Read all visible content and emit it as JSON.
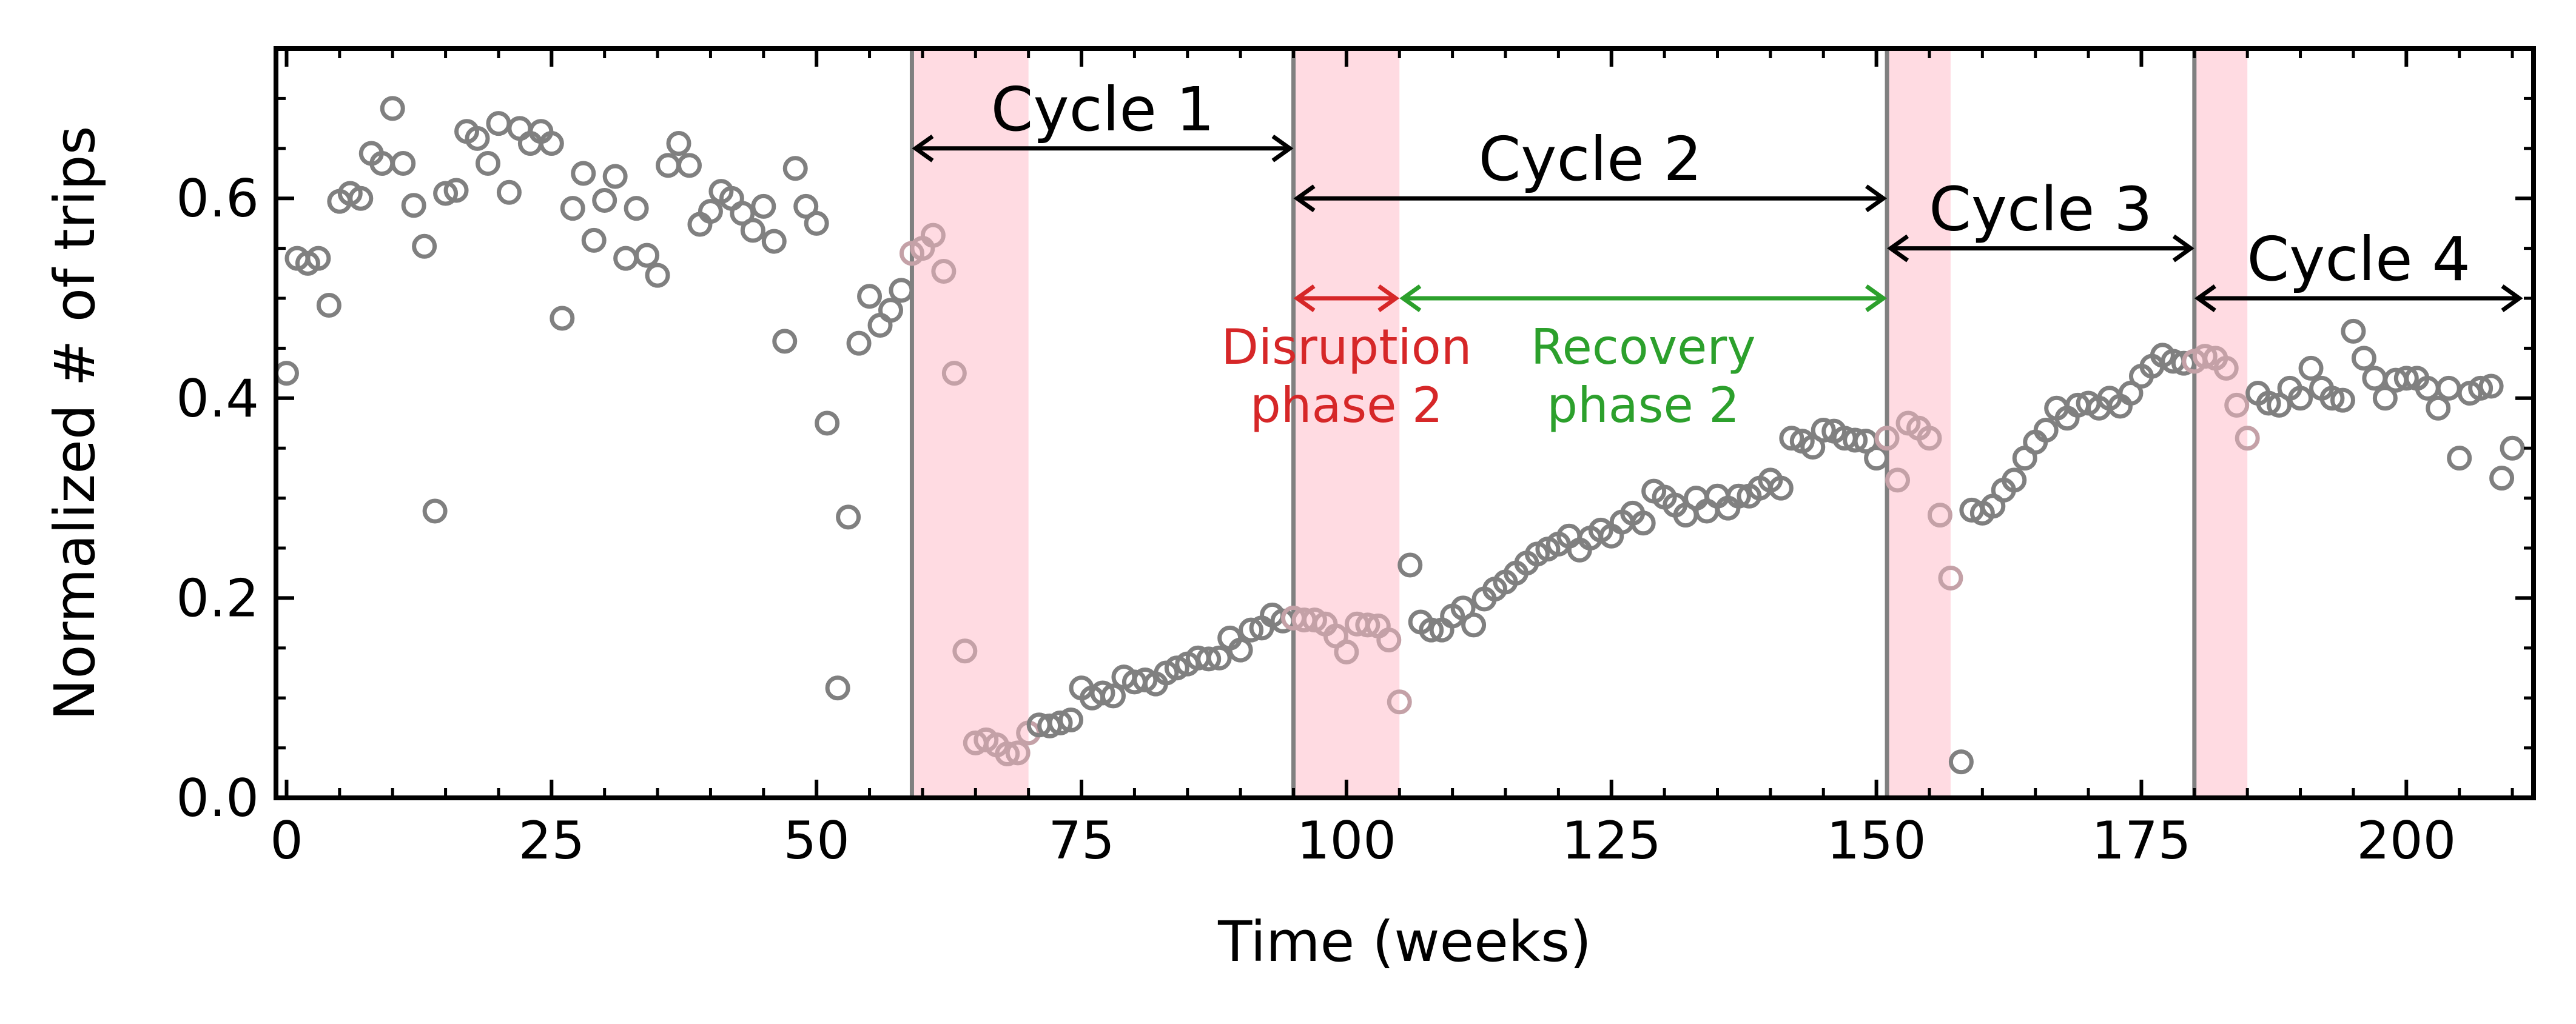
{
  "chart_data": {
    "type": "scatter",
    "xlabel": "Time (weeks)",
    "ylabel": "Normalized # of trips",
    "xlim": [
      -1,
      212
    ],
    "ylim": [
      0,
      0.75
    ],
    "x_ticks": [
      0,
      25,
      50,
      75,
      100,
      125,
      150,
      175,
      200
    ],
    "x_tick_labels": [
      "0",
      "25",
      "50",
      "75",
      "100",
      "125",
      "150",
      "175",
      "200"
    ],
    "y_ticks": [
      0.0,
      0.2,
      0.4,
      0.6
    ],
    "y_tick_labels": [
      "0.0",
      "0.2",
      "0.4",
      "0.6"
    ],
    "grid": false,
    "marker": "open-circle",
    "colors": {
      "point": "#808080",
      "point_in_disruption": "#c4a1a7",
      "disruption_shade": "#ffdbe2",
      "cycle_line": "#808080",
      "cycle_arrow": "#000000",
      "disruption_arrow": "#d62728",
      "recovery_arrow": "#2ca02c"
    },
    "cycle_boundaries": [
      59,
      95,
      151,
      180
    ],
    "disruption_periods": [
      [
        59,
        70
      ],
      [
        95,
        105
      ],
      [
        151,
        157
      ],
      [
        180,
        185
      ]
    ],
    "cycles": [
      {
        "label": "Cycle 1",
        "start": 59,
        "end": 95,
        "y": 0.65
      },
      {
        "label": "Cycle 2",
        "start": 95,
        "end": 151,
        "y": 0.6
      },
      {
        "label": "Cycle 3",
        "start": 151,
        "end": 180,
        "y": 0.55
      },
      {
        "label": "Cycle 4",
        "start": 180,
        "end": 211,
        "y": 0.5
      }
    ],
    "phases": [
      {
        "label_line1": "Disruption",
        "label_line2": "phase 2",
        "start": 95,
        "end": 105,
        "y": 0.5,
        "color": "#d62728"
      },
      {
        "label_line1": "Recovery",
        "label_line2": "phase 2",
        "start": 105,
        "end": 151,
        "y": 0.5,
        "color": "#2ca02c"
      }
    ],
    "points": [
      [
        0,
        0.425
      ],
      [
        1,
        0.54
      ],
      [
        2,
        0.535
      ],
      [
        3,
        0.54
      ],
      [
        4,
        0.493
      ],
      [
        5,
        0.597
      ],
      [
        6,
        0.605
      ],
      [
        7,
        0.6
      ],
      [
        8,
        0.645
      ],
      [
        9,
        0.635
      ],
      [
        10,
        0.69
      ],
      [
        11,
        0.635
      ],
      [
        12,
        0.593
      ],
      [
        13,
        0.552
      ],
      [
        14,
        0.287
      ],
      [
        15,
        0.605
      ],
      [
        16,
        0.608
      ],
      [
        17,
        0.667
      ],
      [
        18,
        0.66
      ],
      [
        19,
        0.635
      ],
      [
        20,
        0.675
      ],
      [
        21,
        0.606
      ],
      [
        22,
        0.67
      ],
      [
        23,
        0.655
      ],
      [
        24,
        0.667
      ],
      [
        25,
        0.655
      ],
      [
        26,
        0.48
      ],
      [
        27,
        0.59
      ],
      [
        28,
        0.625
      ],
      [
        29,
        0.558
      ],
      [
        30,
        0.598
      ],
      [
        31,
        0.622
      ],
      [
        32,
        0.54
      ],
      [
        33,
        0.59
      ],
      [
        34,
        0.543
      ],
      [
        35,
        0.523
      ],
      [
        36,
        0.633
      ],
      [
        37,
        0.655
      ],
      [
        38,
        0.633
      ],
      [
        39,
        0.574
      ],
      [
        40,
        0.587
      ],
      [
        41,
        0.607
      ],
      [
        42,
        0.6
      ],
      [
        43,
        0.585
      ],
      [
        44,
        0.568
      ],
      [
        45,
        0.592
      ],
      [
        46,
        0.557
      ],
      [
        47,
        0.457
      ],
      [
        48,
        0.63
      ],
      [
        49,
        0.592
      ],
      [
        50,
        0.575
      ],
      [
        51,
        0.375
      ],
      [
        52,
        0.11
      ],
      [
        53,
        0.281
      ],
      [
        54,
        0.455
      ],
      [
        55,
        0.502
      ],
      [
        56,
        0.473
      ],
      [
        57,
        0.488
      ],
      [
        58,
        0.508
      ],
      [
        59,
        0.545
      ],
      [
        60,
        0.55
      ],
      [
        61,
        0.563
      ],
      [
        62,
        0.527
      ],
      [
        63,
        0.425
      ],
      [
        64,
        0.147
      ],
      [
        65,
        0.055
      ],
      [
        66,
        0.058
      ],
      [
        67,
        0.053
      ],
      [
        68,
        0.044
      ],
      [
        69,
        0.045
      ],
      [
        70,
        0.065
      ],
      [
        71,
        0.073
      ],
      [
        72,
        0.072
      ],
      [
        73,
        0.075
      ],
      [
        74,
        0.078
      ],
      [
        75,
        0.11
      ],
      [
        76,
        0.1
      ],
      [
        77,
        0.105
      ],
      [
        78,
        0.102
      ],
      [
        79,
        0.121
      ],
      [
        80,
        0.116
      ],
      [
        81,
        0.118
      ],
      [
        82,
        0.114
      ],
      [
        83,
        0.125
      ],
      [
        84,
        0.13
      ],
      [
        85,
        0.134
      ],
      [
        86,
        0.14
      ],
      [
        87,
        0.139
      ],
      [
        88,
        0.14
      ],
      [
        89,
        0.16
      ],
      [
        90,
        0.148
      ],
      [
        91,
        0.168
      ],
      [
        92,
        0.17
      ],
      [
        93,
        0.183
      ],
      [
        94,
        0.177
      ],
      [
        95,
        0.18
      ],
      [
        96,
        0.178
      ],
      [
        97,
        0.178
      ],
      [
        98,
        0.174
      ],
      [
        99,
        0.162
      ],
      [
        100,
        0.146
      ],
      [
        101,
        0.174
      ],
      [
        102,
        0.173
      ],
      [
        103,
        0.172
      ],
      [
        104,
        0.158
      ],
      [
        105,
        0.096
      ],
      [
        106,
        0.233
      ],
      [
        107,
        0.176
      ],
      [
        108,
        0.168
      ],
      [
        109,
        0.168
      ],
      [
        110,
        0.182
      ],
      [
        111,
        0.19
      ],
      [
        112,
        0.173
      ],
      [
        113,
        0.199
      ],
      [
        114,
        0.209
      ],
      [
        115,
        0.216
      ],
      [
        116,
        0.225
      ],
      [
        117,
        0.235
      ],
      [
        118,
        0.244
      ],
      [
        119,
        0.249
      ],
      [
        120,
        0.254
      ],
      [
        121,
        0.262
      ],
      [
        122,
        0.248
      ],
      [
        123,
        0.26
      ],
      [
        124,
        0.268
      ],
      [
        125,
        0.262
      ],
      [
        126,
        0.276
      ],
      [
        127,
        0.285
      ],
      [
        128,
        0.275
      ],
      [
        129,
        0.307
      ],
      [
        130,
        0.301
      ],
      [
        131,
        0.293
      ],
      [
        132,
        0.283
      ],
      [
        133,
        0.3
      ],
      [
        134,
        0.287
      ],
      [
        135,
        0.302
      ],
      [
        136,
        0.29
      ],
      [
        137,
        0.302
      ],
      [
        138,
        0.302
      ],
      [
        139,
        0.31
      ],
      [
        140,
        0.318
      ],
      [
        141,
        0.31
      ],
      [
        142,
        0.36
      ],
      [
        143,
        0.357
      ],
      [
        144,
        0.351
      ],
      [
        145,
        0.368
      ],
      [
        146,
        0.367
      ],
      [
        147,
        0.36
      ],
      [
        148,
        0.358
      ],
      [
        149,
        0.357
      ],
      [
        150,
        0.34
      ],
      [
        151,
        0.36
      ],
      [
        152,
        0.318
      ],
      [
        153,
        0.375
      ],
      [
        154,
        0.37
      ],
      [
        155,
        0.36
      ],
      [
        156,
        0.283
      ],
      [
        157,
        0.22
      ],
      [
        158,
        0.036
      ],
      [
        159,
        0.288
      ],
      [
        160,
        0.285
      ],
      [
        161,
        0.292
      ],
      [
        162,
        0.308
      ],
      [
        163,
        0.318
      ],
      [
        164,
        0.34
      ],
      [
        165,
        0.356
      ],
      [
        166,
        0.368
      ],
      [
        167,
        0.39
      ],
      [
        168,
        0.38
      ],
      [
        169,
        0.393
      ],
      [
        170,
        0.395
      ],
      [
        171,
        0.39
      ],
      [
        172,
        0.4
      ],
      [
        173,
        0.392
      ],
      [
        174,
        0.405
      ],
      [
        175,
        0.422
      ],
      [
        176,
        0.432
      ],
      [
        177,
        0.443
      ],
      [
        178,
        0.437
      ],
      [
        179,
        0.435
      ],
      [
        180,
        0.437
      ],
      [
        181,
        0.442
      ],
      [
        182,
        0.44
      ],
      [
        183,
        0.43
      ],
      [
        184,
        0.393
      ],
      [
        185,
        0.36
      ],
      [
        186,
        0.405
      ],
      [
        187,
        0.395
      ],
      [
        188,
        0.393
      ],
      [
        189,
        0.41
      ],
      [
        190,
        0.4
      ],
      [
        191,
        0.43
      ],
      [
        192,
        0.41
      ],
      [
        193,
        0.4
      ],
      [
        194,
        0.398
      ],
      [
        195,
        0.467
      ],
      [
        196,
        0.44
      ],
      [
        197,
        0.42
      ],
      [
        198,
        0.4
      ],
      [
        199,
        0.418
      ],
      [
        200,
        0.42
      ],
      [
        201,
        0.42
      ],
      [
        202,
        0.41
      ],
      [
        203,
        0.39
      ],
      [
        204,
        0.41
      ],
      [
        205,
        0.34
      ],
      [
        206,
        0.405
      ],
      [
        207,
        0.41
      ],
      [
        208,
        0.412
      ],
      [
        209,
        0.32
      ],
      [
        210,
        0.35
      ]
    ]
  }
}
